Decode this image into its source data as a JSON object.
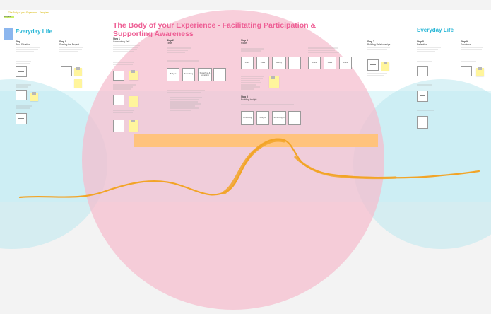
{
  "board": {
    "title": "The Body of your Experience - Facilitating Participation & Supporting Awareness",
    "top_link": "The Body of your Experience - Template",
    "top_chip": "template"
  },
  "left": {
    "title": "Everyday Life",
    "steps": [
      {
        "label": "Step",
        "name": "Prior Situation"
      },
      {
        "label": "Step 0",
        "name": "Starting the Project"
      }
    ]
  },
  "center": {
    "steps": [
      {
        "label": "Step 1",
        "name": "Connecting Self"
      },
      {
        "label": "Step 2",
        "name": "Time"
      },
      {
        "label": "Step 3",
        "name": "Place"
      },
      {
        "label": "Step 5",
        "name": "Building Insight"
      }
    ],
    "card_groups": {
      "step2": [
        "Body at",
        "Something",
        "Something & something"
      ],
      "step3": [
        "Place",
        "Place",
        "Activity"
      ],
      "step3b": [
        "Place",
        "Place",
        "Place"
      ],
      "step5": [
        "Something",
        "Body of",
        "Something of"
      ]
    }
  },
  "right": {
    "title": "Everyday Life",
    "steps": [
      {
        "label": "Step 7",
        "name": "Building Relationships"
      },
      {
        "label": "Step 8",
        "name": "Reflection"
      },
      {
        "label": "Step 9",
        "name": "Emotional"
      }
    ]
  },
  "colors": {
    "title_pink": "#ee5f95",
    "side_title_blue": "#27b6d6",
    "wave_orange": "#f2a427",
    "sticky_yellow": "#fff59c",
    "bar_orange": "#ffc37d"
  }
}
